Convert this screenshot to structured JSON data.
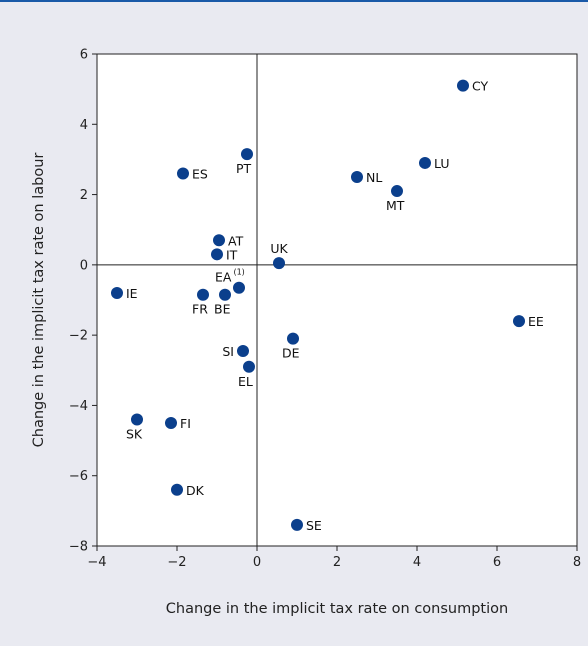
{
  "chart_data": {
    "type": "scatter",
    "title": "",
    "xlabel": "Change in the implicit tax rate on consumption",
    "ylabel": "Change in the implicit tax rate on labour",
    "xlim": [
      -4,
      8
    ],
    "ylim": [
      -8,
      6
    ],
    "xticks": [
      -4,
      -2,
      0,
      2,
      4,
      6,
      8
    ],
    "yticks": [
      -8,
      -6,
      -4,
      -2,
      0,
      2,
      4,
      6
    ],
    "xtick_labels": [
      "−4",
      "−2",
      "0",
      "2",
      "4",
      "6",
      "8"
    ],
    "ytick_labels": [
      "−8",
      "−6",
      "−4",
      "−2",
      "0",
      "2",
      "4",
      "6"
    ],
    "grid": false,
    "marker_color": "#0b3f8c",
    "points": [
      {
        "label": "CY",
        "x": 5.15,
        "y": 5.1,
        "pos": "right"
      },
      {
        "label": "PT",
        "x": -0.25,
        "y": 3.15,
        "pos": "below"
      },
      {
        "label": "LU",
        "x": 4.2,
        "y": 2.9,
        "pos": "right"
      },
      {
        "label": "ES",
        "x": -1.85,
        "y": 2.6,
        "pos": "right"
      },
      {
        "label": "NL",
        "x": 2.5,
        "y": 2.5,
        "pos": "right"
      },
      {
        "label": "MT",
        "x": 3.5,
        "y": 2.1,
        "pos": "below"
      },
      {
        "label": "AT",
        "x": -0.95,
        "y": 0.7,
        "pos": "right"
      },
      {
        "label": "IT",
        "x": -1.0,
        "y": 0.3,
        "pos": "right"
      },
      {
        "label": "UK",
        "x": 0.55,
        "y": 0.05,
        "pos": "above"
      },
      {
        "label": "EA",
        "sup": "(1)",
        "x": -0.45,
        "y": -0.65,
        "pos": "above-left"
      },
      {
        "label": "IE",
        "x": -3.5,
        "y": -0.8,
        "pos": "right"
      },
      {
        "label": "FR",
        "x": -1.35,
        "y": -0.85,
        "pos": "below"
      },
      {
        "label": "BE",
        "x": -0.8,
        "y": -0.85,
        "pos": "below"
      },
      {
        "label": "EE",
        "x": 6.55,
        "y": -1.6,
        "pos": "right"
      },
      {
        "label": "DE",
        "x": 0.9,
        "y": -2.1,
        "pos": "below"
      },
      {
        "label": "SI",
        "x": -0.35,
        "y": -2.45,
        "pos": "left"
      },
      {
        "label": "EL",
        "x": -0.2,
        "y": -2.9,
        "pos": "below"
      },
      {
        "label": "SK",
        "x": -3.0,
        "y": -4.4,
        "pos": "below"
      },
      {
        "label": "FI",
        "x": -2.15,
        "y": -4.5,
        "pos": "right"
      },
      {
        "label": "DK",
        "x": -2.0,
        "y": -6.4,
        "pos": "right"
      },
      {
        "label": "SE",
        "x": 1.0,
        "y": -7.4,
        "pos": "right"
      }
    ]
  }
}
